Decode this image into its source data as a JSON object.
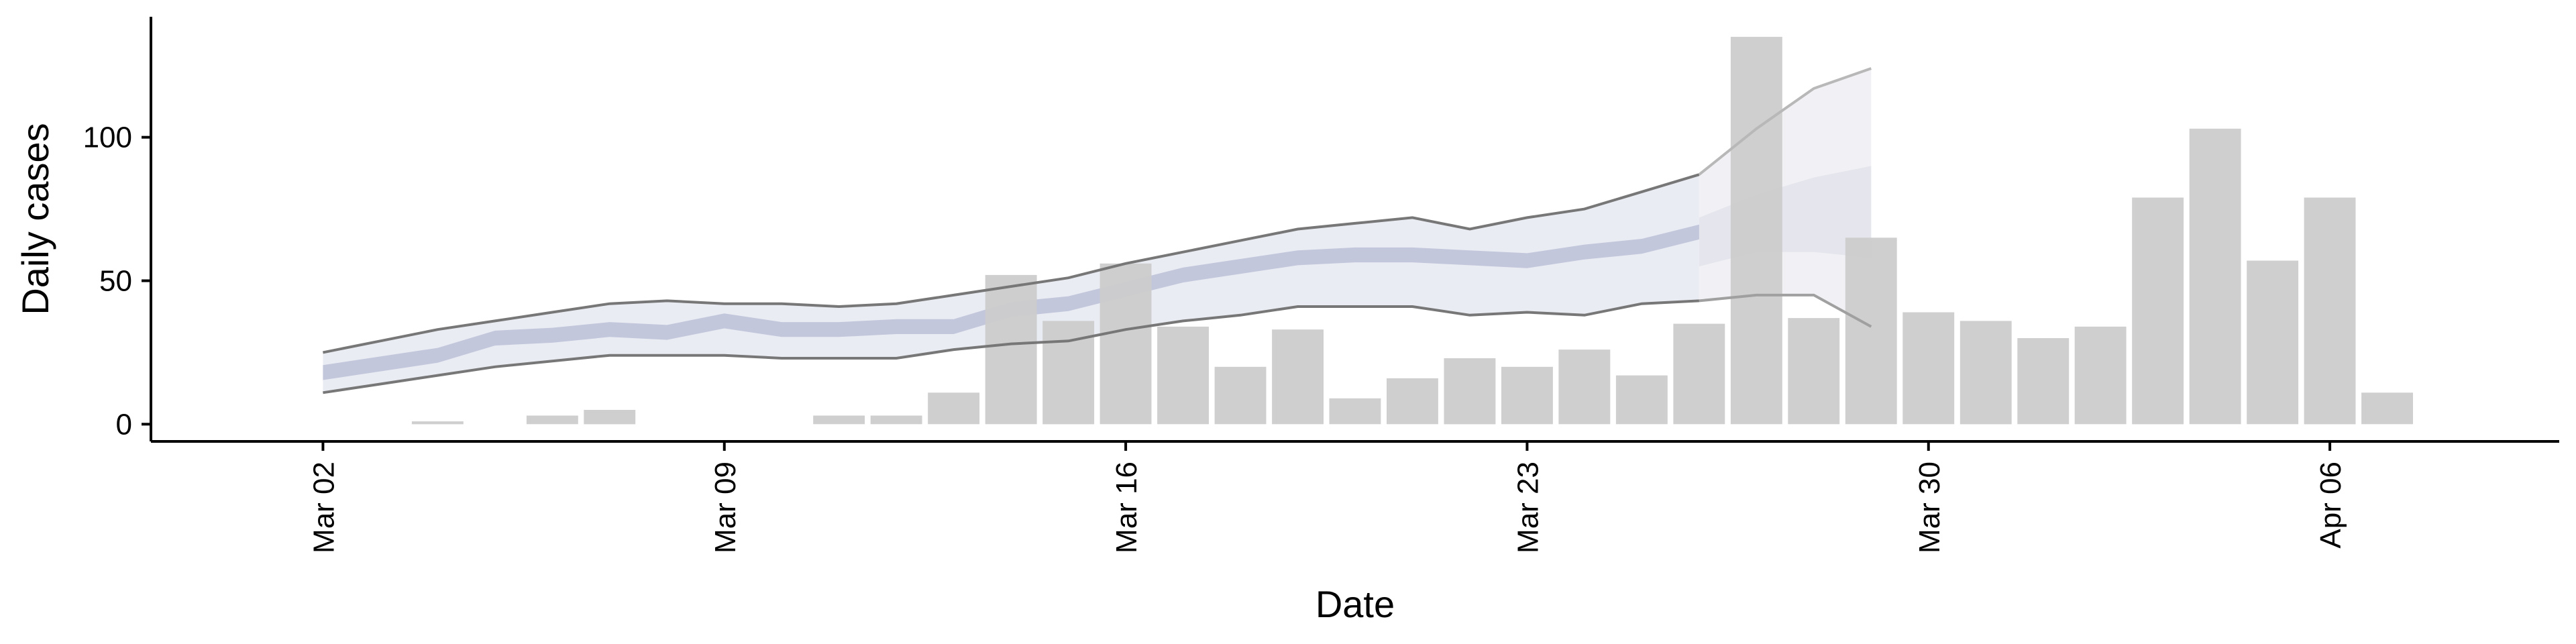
{
  "chart_data": {
    "type": "bar",
    "title": "",
    "xlabel": "Date",
    "ylabel": "Daily cases",
    "ylim": [
      -6,
      142
    ],
    "yticks": [
      0,
      50,
      100
    ],
    "xticks": [
      {
        "x": "2020-03-02",
        "label": "Mar 02"
      },
      {
        "x": "2020-03-09",
        "label": "Mar 09"
      },
      {
        "x": "2020-03-16",
        "label": "Mar 16"
      },
      {
        "x": "2020-03-23",
        "label": "Mar 23"
      },
      {
        "x": "2020-03-30",
        "label": "Mar 30"
      },
      {
        "x": "2020-04-06",
        "label": "Apr 06"
      }
    ],
    "xlim": [
      "2020-02-28",
      "2020-04-10"
    ],
    "grid": false,
    "legend": "none",
    "colors": {
      "bars": "#cccccc",
      "band_outer": "#e3e5ef",
      "band_median": "#c3c7dc",
      "forecast_outer": "#f1f1f5",
      "forecast_inner": "#e5e6ed",
      "bound_lines": "#777777",
      "axis": "#000000"
    },
    "bars": [
      {
        "x": "2020-03-04",
        "y": 1
      },
      {
        "x": "2020-03-06",
        "y": 3
      },
      {
        "x": "2020-03-07",
        "y": 5
      },
      {
        "x": "2020-03-11",
        "y": 3
      },
      {
        "x": "2020-03-12",
        "y": 3
      },
      {
        "x": "2020-03-13",
        "y": 11
      },
      {
        "x": "2020-03-14",
        "y": 52
      },
      {
        "x": "2020-03-15",
        "y": 36
      },
      {
        "x": "2020-03-16",
        "y": 56
      },
      {
        "x": "2020-03-17",
        "y": 34
      },
      {
        "x": "2020-03-18",
        "y": 20
      },
      {
        "x": "2020-03-19",
        "y": 33
      },
      {
        "x": "2020-03-20",
        "y": 9
      },
      {
        "x": "2020-03-21",
        "y": 16
      },
      {
        "x": "2020-03-22",
        "y": 23
      },
      {
        "x": "2020-03-23",
        "y": 20
      },
      {
        "x": "2020-03-24",
        "y": 26
      },
      {
        "x": "2020-03-25",
        "y": 17
      },
      {
        "x": "2020-03-26",
        "y": 35
      },
      {
        "x": "2020-03-27",
        "y": 135
      },
      {
        "x": "2020-03-28",
        "y": 37
      },
      {
        "x": "2020-03-29",
        "y": 65
      },
      {
        "x": "2020-03-30",
        "y": 39
      },
      {
        "x": "2020-03-31",
        "y": 36
      },
      {
        "x": "2020-04-01",
        "y": 30
      },
      {
        "x": "2020-04-02",
        "y": 34
      },
      {
        "x": "2020-04-03",
        "y": 79
      },
      {
        "x": "2020-04-04",
        "y": 103
      },
      {
        "x": "2020-04-05",
        "y": 57
      },
      {
        "x": "2020-04-06",
        "y": 79
      },
      {
        "x": "2020-04-07",
        "y": 11
      }
    ],
    "estimate": {
      "x": [
        "2020-03-02",
        "2020-03-03",
        "2020-03-04",
        "2020-03-05",
        "2020-03-06",
        "2020-03-07",
        "2020-03-08",
        "2020-03-09",
        "2020-03-10",
        "2020-03-11",
        "2020-03-12",
        "2020-03-13",
        "2020-03-14",
        "2020-03-15",
        "2020-03-16",
        "2020-03-17",
        "2020-03-18",
        "2020-03-19",
        "2020-03-20",
        "2020-03-21",
        "2020-03-22",
        "2020-03-23",
        "2020-03-24",
        "2020-03-25",
        "2020-03-26"
      ],
      "median": [
        18,
        21,
        24,
        30,
        31,
        33,
        32,
        36,
        33,
        33,
        34,
        34,
        40,
        42,
        47,
        52,
        55,
        58,
        59,
        59,
        58,
        57,
        60,
        62,
        67
      ],
      "lower": [
        11,
        14,
        17,
        20,
        22,
        24,
        24,
        24,
        23,
        23,
        23,
        26,
        28,
        29,
        33,
        36,
        38,
        41,
        41,
        41,
        38,
        39,
        38,
        42,
        43
      ],
      "upper": [
        25,
        29,
        33,
        36,
        39,
        42,
        43,
        42,
        42,
        41,
        42,
        45,
        48,
        51,
        56,
        60,
        64,
        68,
        70,
        72,
        68,
        72,
        75,
        81,
        87
      ]
    },
    "forecast": {
      "x": [
        "2020-03-26",
        "2020-03-27",
        "2020-03-28",
        "2020-03-29"
      ],
      "lower": [
        43,
        45,
        45,
        34
      ],
      "upper": [
        87,
        103,
        117,
        124
      ],
      "inner_lower": [
        55,
        60,
        60,
        58
      ],
      "inner_upper": [
        72,
        80,
        86,
        90
      ]
    }
  }
}
